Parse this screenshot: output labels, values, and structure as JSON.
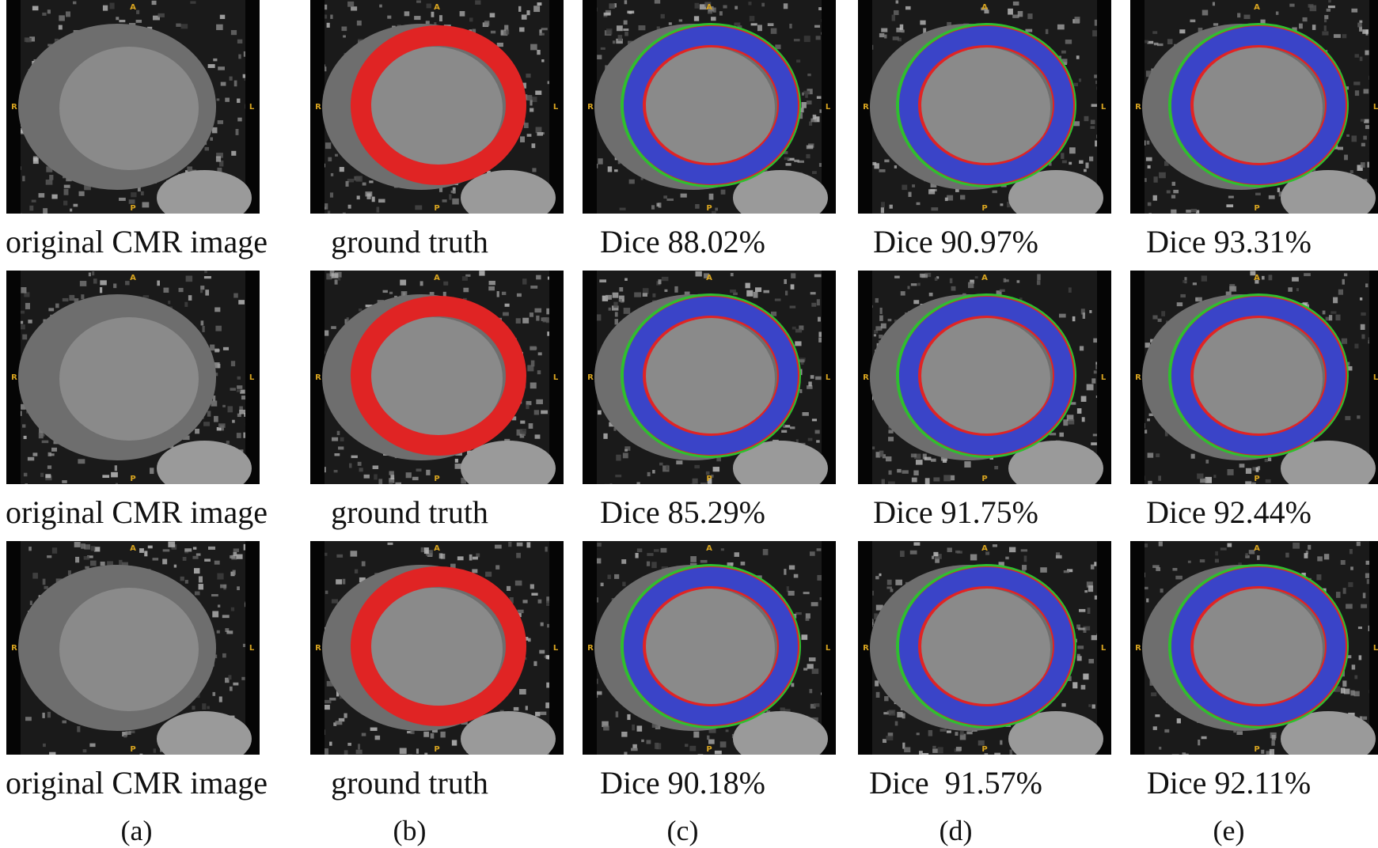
{
  "figure": {
    "column_labels": [
      "(a)",
      "(b)",
      "(c)",
      "(d)",
      "(e)"
    ],
    "orientation_labels": {
      "top": "A",
      "bottom": "P",
      "left": "R",
      "right": "L"
    },
    "rows": [
      {
        "captions": [
          "original CMR image",
          "ground truth",
          "Dice 88.02%",
          "Dice 90.97%",
          "Dice 93.31%"
        ],
        "panels": [
          "original",
          "ground-truth",
          "prediction",
          "prediction",
          "prediction"
        ]
      },
      {
        "captions": [
          "original CMR image",
          "ground truth",
          "Dice 85.29%",
          "Dice 91.75%",
          "Dice 92.44%"
        ],
        "panels": [
          "original",
          "ground-truth",
          "prediction",
          "prediction",
          "prediction"
        ]
      },
      {
        "captions": [
          "original CMR image",
          "ground truth",
          "Dice 90.18%",
          "Dice  91.57%",
          "Dice 92.11%"
        ],
        "panels": [
          "original",
          "ground-truth",
          "prediction",
          "prediction",
          "prediction"
        ]
      }
    ],
    "colors": {
      "ground_truth": "#e02424",
      "overlap": "#3a44c8",
      "false_positive": "#2fbf2f",
      "false_negative": "#e02424",
      "orientation_text": "#d9a520"
    }
  }
}
